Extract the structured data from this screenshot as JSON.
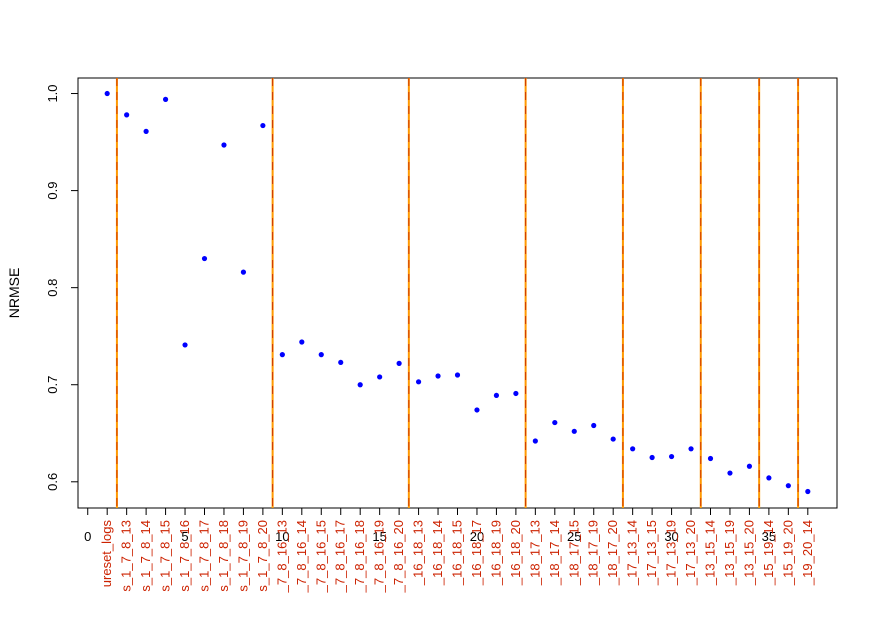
{
  "chart_data": {
    "type": "scatter",
    "title": "",
    "xlabel": "",
    "ylabel": "NRMSE",
    "xlim": [
      -0.5,
      38.5
    ],
    "ylim": [
      0.573,
      1.016
    ],
    "x_ticks": [
      0,
      5,
      10,
      15,
      20,
      25,
      30,
      35
    ],
    "y_ticks": [
      0.6,
      0.7,
      0.8,
      0.9,
      1.0
    ],
    "y_tick_labels": [
      "0.6",
      "0.7",
      "0.8",
      "0.9",
      "1.0"
    ],
    "grid": false,
    "point_color": "#0000ff",
    "label_color": "#cc2200",
    "vline_colors": [
      "#ff9900",
      "#cc3300"
    ],
    "vlines_x": [
      1.5,
      9.5,
      16.5,
      22.5,
      27.5,
      31.5,
      34.5,
      36.5
    ],
    "labels": [
      "ureset_logs",
      "s_1_7_8_13",
      "s_1_7_8_14",
      "s_1_7_8_15",
      "s_1_7_8_16",
      "s_1_7_8_17",
      "s_1_7_8_18",
      "s_1_7_8_19",
      "s_1_7_8_20",
      "_7_8_16_13",
      "_7_8_16_14",
      "_7_8_16_15",
      "_7_8_16_17",
      "_7_8_16_18",
      "_7_8_16_19",
      "_7_8_16_20",
      "_16_18_13",
      "_16_18_14",
      "_16_18_15",
      "_16_18_17",
      "_16_18_19",
      "_16_18_20",
      "_18_17_13",
      "_18_17_14",
      "_18_17_15",
      "_18_17_19",
      "_18_17_20",
      "_17_13_14",
      "_17_13_15",
      "_17_13_19",
      "_17_13_20",
      "_13_15_14",
      "_13_15_19",
      "_13_15_20",
      "_15_19_14",
      "_15_19_20",
      "_19_20_14"
    ],
    "points": [
      {
        "x": 1,
        "y": 1.0
      },
      {
        "x": 2,
        "y": 0.978
      },
      {
        "x": 3,
        "y": 0.961
      },
      {
        "x": 4,
        "y": 0.994
      },
      {
        "x": 5,
        "y": 0.741
      },
      {
        "x": 6,
        "y": 0.83
      },
      {
        "x": 7,
        "y": 0.947
      },
      {
        "x": 8,
        "y": 0.816
      },
      {
        "x": 9,
        "y": 0.967
      },
      {
        "x": 10,
        "y": 0.731
      },
      {
        "x": 11,
        "y": 0.744
      },
      {
        "x": 12,
        "y": 0.731
      },
      {
        "x": 13,
        "y": 0.723
      },
      {
        "x": 14,
        "y": 0.7
      },
      {
        "x": 15,
        "y": 0.708
      },
      {
        "x": 16,
        "y": 0.722
      },
      {
        "x": 17,
        "y": 0.703
      },
      {
        "x": 18,
        "y": 0.709
      },
      {
        "x": 19,
        "y": 0.71
      },
      {
        "x": 20,
        "y": 0.674
      },
      {
        "x": 21,
        "y": 0.689
      },
      {
        "x": 22,
        "y": 0.691
      },
      {
        "x": 23,
        "y": 0.642
      },
      {
        "x": 24,
        "y": 0.661
      },
      {
        "x": 25,
        "y": 0.652
      },
      {
        "x": 26,
        "y": 0.658
      },
      {
        "x": 27,
        "y": 0.644
      },
      {
        "x": 28,
        "y": 0.634
      },
      {
        "x": 29,
        "y": 0.625
      },
      {
        "x": 30,
        "y": 0.626
      },
      {
        "x": 31,
        "y": 0.634
      },
      {
        "x": 32,
        "y": 0.624
      },
      {
        "x": 33,
        "y": 0.609
      },
      {
        "x": 34,
        "y": 0.616
      },
      {
        "x": 35,
        "y": 0.604
      },
      {
        "x": 36,
        "y": 0.596
      },
      {
        "x": 37,
        "y": 0.59
      }
    ]
  }
}
